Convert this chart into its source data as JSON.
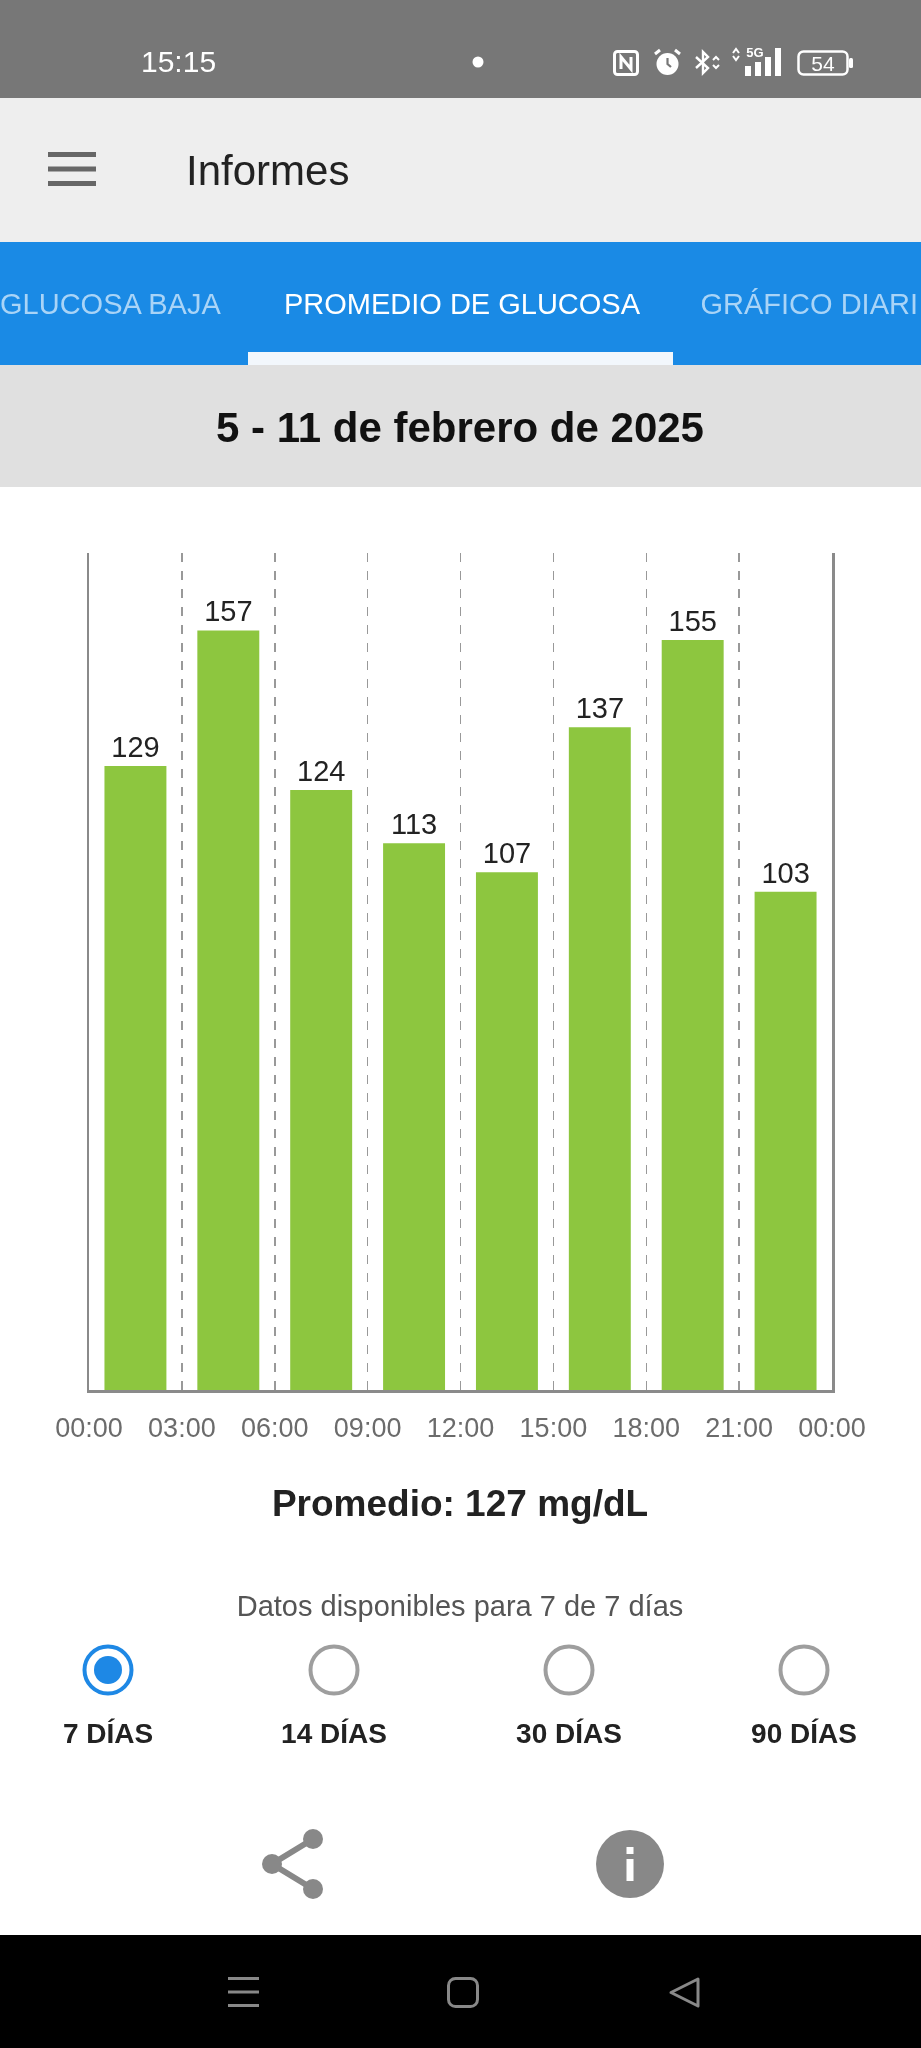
{
  "chart_data": {
    "type": "bar",
    "title": "5 - 11 de febrero de 2025",
    "x": [
      1.5,
      4.5,
      7.5,
      10.5,
      13.5,
      16.5,
      19.5,
      22.5
    ],
    "values": [
      129,
      157,
      124,
      113,
      107,
      137,
      155,
      103
    ],
    "color": "#8dc63f",
    "data_labels": true,
    "xlim": [
      0,
      24
    ],
    "xticks": [
      {
        "value": 0,
        "label": "00:00"
      },
      {
        "value": 3,
        "label": "03:00"
      },
      {
        "value": 6,
        "label": "06:00"
      },
      {
        "value": 9,
        "label": "09:00"
      },
      {
        "value": 12,
        "label": "12:00"
      },
      {
        "value": 15,
        "label": "15:00"
      },
      {
        "value": 18,
        "label": "18:00"
      },
      {
        "value": 21,
        "label": "21:00"
      },
      {
        "value": 24,
        "label": "00:00"
      }
    ],
    "ylim": [
      0,
      173
    ],
    "grid": "x",
    "tick_labels": "x",
    "annotations": [
      "15:15",
      "5G",
      "54",
      "Informes",
      "GLUCOSA BAJA",
      "PROMEDIO DE GLUCOSA",
      "GRÁFICO DIARI",
      "Promedio: 127 mg/dL",
      "Datos disponibles para 7 de 7 días",
      "7 DÍAS",
      "14 DÍAS",
      "30 DÍAS",
      "90 DÍAS"
    ]
  }
}
